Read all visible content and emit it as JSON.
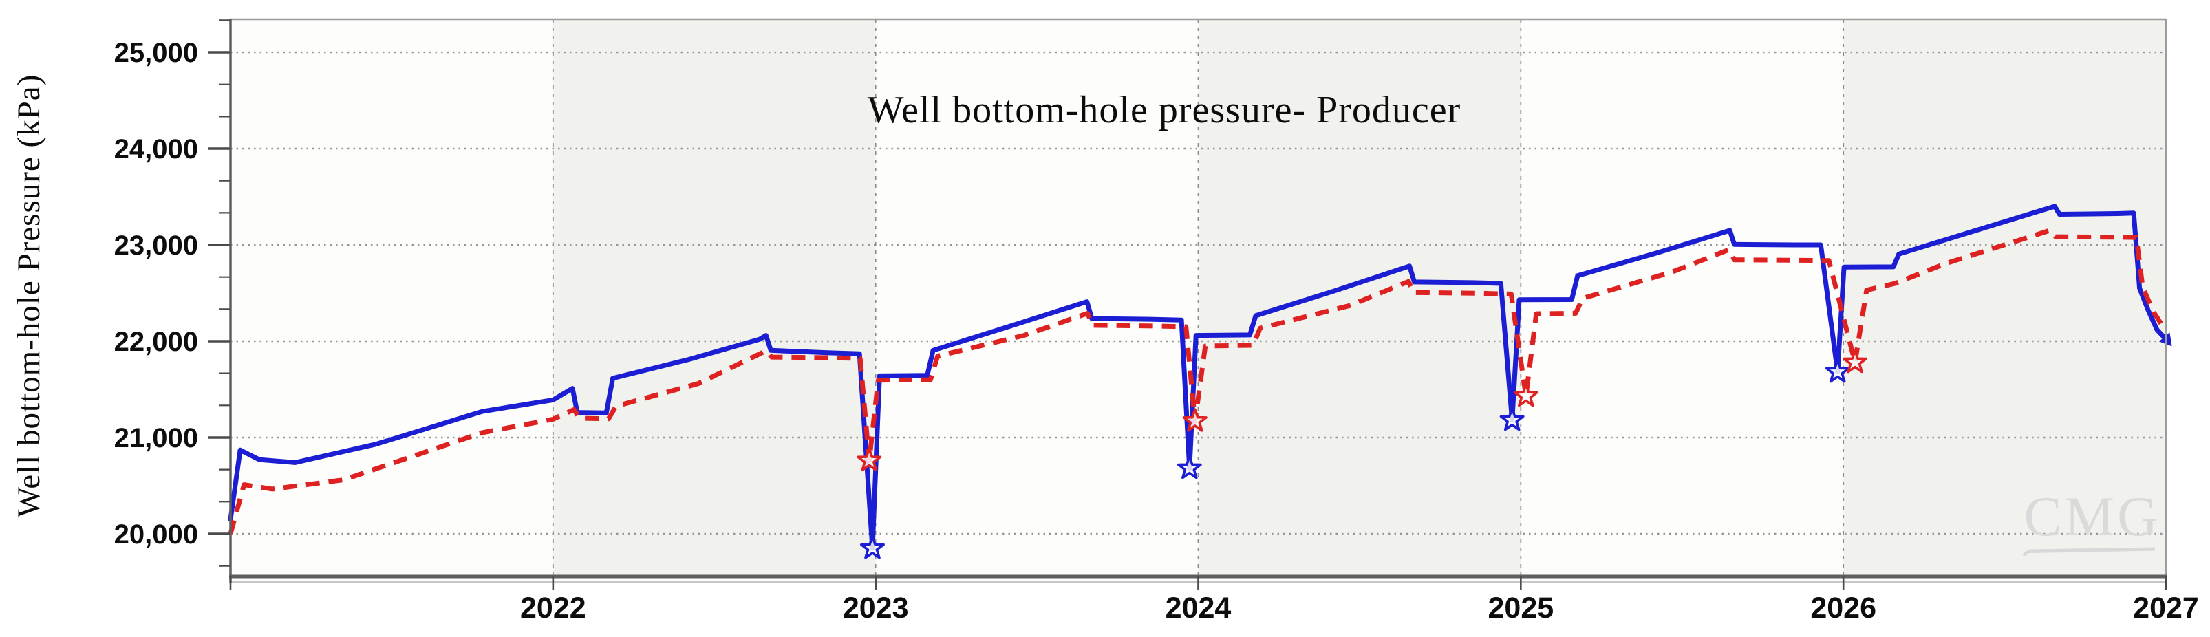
{
  "chart_data": {
    "type": "line",
    "title": "Well bottom-hole pressure- Producer",
    "xlabel": "",
    "ylabel": "Well bottom-hole Pressure (kPa)",
    "watermark": "CMG",
    "legend_position": "none",
    "grid": true,
    "x_range": [
      2021,
      2027
    ],
    "y_range": [
      19557,
      25343
    ],
    "x_tick_values": [
      2021,
      2022,
      2023,
      2024,
      2025,
      2026,
      2027
    ],
    "x_tick_labels": [
      "",
      "2022",
      "2023",
      "2024",
      "2025",
      "2026",
      "2027"
    ],
    "y_tick_values": [
      20000,
      21000,
      22000,
      23000,
      24000,
      25000
    ],
    "y_tick_labels": [
      "20,000",
      "21,000",
      "22,000",
      "23,000",
      "24,000",
      "25,000"
    ],
    "y_minor_divisions": 3,
    "alternating_band_years": [
      2022,
      2024,
      2026
    ],
    "colors": {
      "blue_series": "#1b1ed2",
      "red_series": "#de2121",
      "h_grid": "#969696",
      "v_grid": "#8c8c8c",
      "band": "#f1f1ee",
      "plot_bg": "#fdfdfc",
      "axis_dark": "#5f5f5f",
      "axis_light": "#9c9c9c",
      "axis_shadow": "#c6c6c6",
      "tick": "#4a4a4a",
      "label": "#0d0d0d",
      "watermark": "#dadada"
    },
    "series": [
      {
        "name": "blue-solid",
        "style": "solid",
        "color_key": "blue_series",
        "points": [
          [
            2021.0,
            20150
          ],
          [
            2021.03,
            20870
          ],
          [
            2021.09,
            20770
          ],
          [
            2021.2,
            20740
          ],
          [
            2021.45,
            20930
          ],
          [
            2021.78,
            21270
          ],
          [
            2022.0,
            21390
          ],
          [
            2022.06,
            21510
          ],
          [
            2022.075,
            21260
          ],
          [
            2022.165,
            21255
          ],
          [
            2022.185,
            21615
          ],
          [
            2022.42,
            21810
          ],
          [
            2022.64,
            22020
          ],
          [
            2022.66,
            22060
          ],
          [
            2022.675,
            21905
          ],
          [
            2022.85,
            21880
          ],
          [
            2022.95,
            21870
          ],
          [
            2022.99,
            19850
          ],
          [
            2023.012,
            21640
          ],
          [
            2023.16,
            21645
          ],
          [
            2023.178,
            21905
          ],
          [
            2023.42,
            22160
          ],
          [
            2023.655,
            22410
          ],
          [
            2023.67,
            22235
          ],
          [
            2023.85,
            22228
          ],
          [
            2023.948,
            22220
          ],
          [
            2023.973,
            20680
          ],
          [
            2023.993,
            22060
          ],
          [
            2024.16,
            22065
          ],
          [
            2024.178,
            22265
          ],
          [
            2024.42,
            22520
          ],
          [
            2024.655,
            22780
          ],
          [
            2024.67,
            22615
          ],
          [
            2024.85,
            22608
          ],
          [
            2024.938,
            22600
          ],
          [
            2024.973,
            21180
          ],
          [
            2024.995,
            22430
          ],
          [
            2025.158,
            22432
          ],
          [
            2025.176,
            22680
          ],
          [
            2025.42,
            22915
          ],
          [
            2025.648,
            23150
          ],
          [
            2025.662,
            23005
          ],
          [
            2025.85,
            23000
          ],
          [
            2025.93,
            23000
          ],
          [
            2025.982,
            21680
          ],
          [
            2026.002,
            22770
          ],
          [
            2026.155,
            22772
          ],
          [
            2026.172,
            22905
          ],
          [
            2026.42,
            23160
          ],
          [
            2026.655,
            23400
          ],
          [
            2026.67,
            23318
          ],
          [
            2026.85,
            23325
          ],
          [
            2026.9,
            23330
          ],
          [
            2026.918,
            22550
          ],
          [
            2026.945,
            22320
          ],
          [
            2026.972,
            22120
          ],
          [
            2026.997,
            22030
          ]
        ],
        "min_markers": [
          [
            2022.99,
            19850
          ],
          [
            2023.973,
            20680
          ],
          [
            2024.973,
            21180
          ],
          [
            2025.982,
            21680
          ]
        ],
        "end_marker": [
          2026.997,
          22030
        ]
      },
      {
        "name": "red-dashed",
        "style": "dashed",
        "color_key": "red_series",
        "points": [
          [
            2021.0,
            20000
          ],
          [
            2021.042,
            20510
          ],
          [
            2021.13,
            20465
          ],
          [
            2021.35,
            20560
          ],
          [
            2021.78,
            21050
          ],
          [
            2022.0,
            21190
          ],
          [
            2022.065,
            21290
          ],
          [
            2022.082,
            21200
          ],
          [
            2022.172,
            21195
          ],
          [
            2022.195,
            21325
          ],
          [
            2022.45,
            21560
          ],
          [
            2022.66,
            21900
          ],
          [
            2022.678,
            21835
          ],
          [
            2022.87,
            21828
          ],
          [
            2022.952,
            21820
          ],
          [
            2022.98,
            20760
          ],
          [
            2023.008,
            21595
          ],
          [
            2023.17,
            21600
          ],
          [
            2023.192,
            21845
          ],
          [
            2023.46,
            22060
          ],
          [
            2023.657,
            22290
          ],
          [
            2023.672,
            22165
          ],
          [
            2023.87,
            22158
          ],
          [
            2023.962,
            22150
          ],
          [
            2023.99,
            21170
          ],
          [
            2024.022,
            21950
          ],
          [
            2024.17,
            21958
          ],
          [
            2024.192,
            22135
          ],
          [
            2024.47,
            22370
          ],
          [
            2024.652,
            22620
          ],
          [
            2024.668,
            22505
          ],
          [
            2024.87,
            22498
          ],
          [
            2024.97,
            22490
          ],
          [
            2025.016,
            21430
          ],
          [
            2025.048,
            22285
          ],
          [
            2025.17,
            22290
          ],
          [
            2025.192,
            22445
          ],
          [
            2025.47,
            22720
          ],
          [
            2025.645,
            22950
          ],
          [
            2025.662,
            22845
          ],
          [
            2025.87,
            22840
          ],
          [
            2025.955,
            22838
          ],
          [
            2026.036,
            21780
          ],
          [
            2026.072,
            22530
          ],
          [
            2026.16,
            22600
          ],
          [
            2026.32,
            22810
          ],
          [
            2026.64,
            23150
          ],
          [
            2026.658,
            23085
          ],
          [
            2026.85,
            23080
          ],
          [
            2026.908,
            23078
          ],
          [
            2026.928,
            22560
          ],
          [
            2026.962,
            22300
          ],
          [
            2026.997,
            22120
          ]
        ],
        "min_markers": [
          [
            2022.98,
            20760
          ],
          [
            2023.99,
            21170
          ],
          [
            2025.016,
            21430
          ],
          [
            2026.036,
            21780
          ]
        ]
      }
    ]
  }
}
